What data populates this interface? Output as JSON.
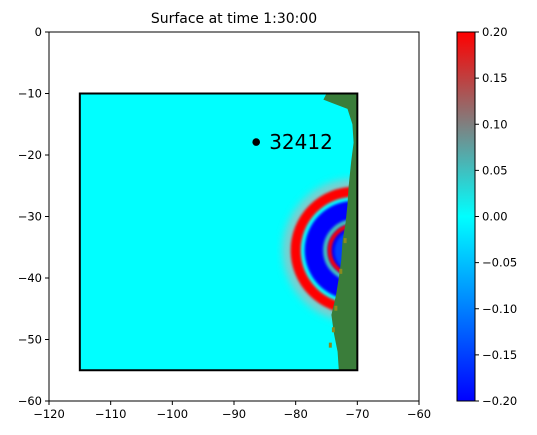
{
  "chart_data": {
    "type": "heatmap",
    "title": "Surface at time 1:30:00",
    "xlabel": "",
    "ylabel": "",
    "xlim": [
      -120,
      -60
    ],
    "ylim": [
      -60,
      0
    ],
    "xticks": [
      -120,
      -110,
      -100,
      -90,
      -80,
      -70,
      -60
    ],
    "yticks": [
      0,
      -10,
      -20,
      -30,
      -40,
      -50,
      -60
    ],
    "xtick_labels": [
      "−120",
      "−110",
      "−100",
      "−90",
      "−80",
      "−70",
      "−60"
    ],
    "ytick_labels": [
      "0",
      "−10",
      "−20",
      "−30",
      "−40",
      "−50",
      "−60"
    ],
    "grid": false,
    "domain_box": {
      "x": [
        -115,
        -70
      ],
      "y": [
        -55,
        -10
      ]
    },
    "background_value": 0.0,
    "land_color": "#3a7d3a",
    "gauge": {
      "label": "32412",
      "x": -86.4,
      "y": -17.9
    },
    "wave": {
      "center_x": -70.5,
      "center_y": -35.5,
      "outer_ring_radius": 9.5,
      "inner_ring_radius": 4.0,
      "ring_amplitude": 0.2,
      "trough_amplitude": -0.2
    },
    "colorbar": {
      "vmin": -0.2,
      "vmax": 0.2,
      "ticks": [
        0.2,
        0.15,
        0.1,
        0.05,
        0.0,
        -0.05,
        -0.1,
        -0.15,
        -0.2
      ],
      "tick_labels": [
        "0.20",
        "0.15",
        "0.10",
        "0.05",
        "0.00",
        "−0.05",
        "−0.10",
        "−0.15",
        "−0.20"
      ],
      "colors": {
        "min": "#0000ff",
        "mid": "#00ffff",
        "max": "#ff0000"
      }
    }
  }
}
